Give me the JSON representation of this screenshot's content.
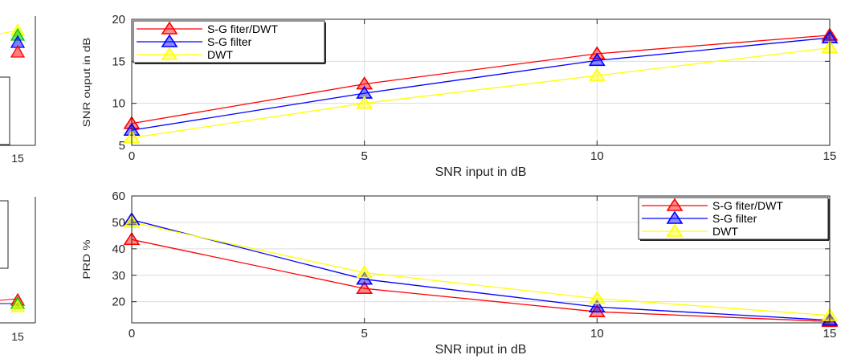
{
  "chart_data": [
    {
      "type": "line",
      "categories": [
        0,
        5,
        10,
        15
      ],
      "xticks": [
        "0",
        "5",
        "10",
        "15"
      ],
      "ylim": [
        5,
        20
      ],
      "yticks": [
        "5",
        "10",
        "15",
        "20"
      ],
      "xlabel": "SNR input in dB",
      "ylabel": "SNR ouput in dB",
      "grid": true,
      "legend_position": "top-left",
      "series": [
        {
          "name": "S-G fiter/DWT",
          "color": "#ff0000",
          "values": [
            7.6,
            12.3,
            15.9,
            18.1
          ]
        },
        {
          "name": "S-G filter",
          "color": "#0000ff",
          "values": [
            6.8,
            11.2,
            15.1,
            17.8
          ]
        },
        {
          "name": "DWT",
          "color": "#ffff00",
          "values": [
            5.9,
            10.0,
            13.3,
            16.6
          ]
        }
      ]
    },
    {
      "type": "line",
      "categories": [
        0,
        5,
        10,
        15
      ],
      "xticks": [
        "0",
        "5",
        "10",
        "15"
      ],
      "ylim": [
        12,
        60
      ],
      "yticks": [
        "20",
        "30",
        "40",
        "50",
        "60"
      ],
      "xlabel": "SNR input in dB",
      "ylabel": "PRD %",
      "grid": true,
      "legend_position": "top-right",
      "series": [
        {
          "name": "S-G fiter/DWT",
          "color": "#ff0000",
          "values": [
            43.5,
            25.0,
            16.2,
            12.5
          ]
        },
        {
          "name": "S-G filter",
          "color": "#0000ff",
          "values": [
            51.0,
            28.5,
            18.0,
            13.0
          ]
        },
        {
          "name": "DWT",
          "color": "#ffff00",
          "values": [
            50.0,
            31.0,
            21.2,
            14.8
          ]
        }
      ]
    }
  ],
  "left_partial_panel": {
    "top_xtick": "15",
    "bottom_xtick": "15"
  }
}
